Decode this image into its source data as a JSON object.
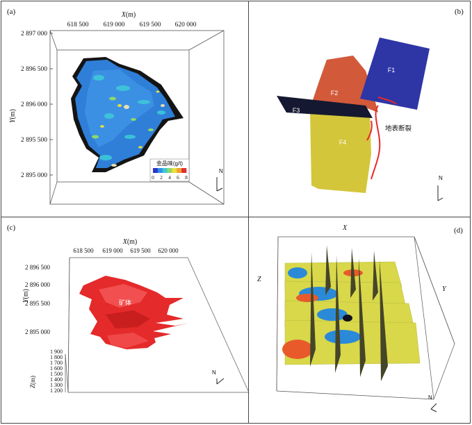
{
  "panel_a": {
    "label": "(a)",
    "x_axis_title": "X",
    "x_axis_unit": "(m)",
    "x_ticks": [
      "618 500",
      "619 000",
      "619 500",
      "620 000"
    ],
    "y_axis_title": "Y",
    "y_axis_unit": "(m)",
    "y_ticks": [
      "2 897 000",
      "2 896 500",
      "2 896 000",
      "2 895 500",
      "2 895 000"
    ],
    "legend_title": "金品味(g/t)",
    "legend_ticks": [
      "0",
      "2",
      "4",
      "6",
      "8"
    ],
    "legend_colors": [
      "#2a36c8",
      "#2f8fe8",
      "#3cc8d8",
      "#8ed86a",
      "#e8e040",
      "#f0a030",
      "#e03030"
    ],
    "north": "N"
  },
  "panel_b": {
    "label": "(b)",
    "f1": "F1",
    "f2": "F2",
    "f3": "F3",
    "f4": "F4",
    "surface_fault": "地表断裂",
    "north": "N",
    "colors": {
      "f1": "#2e36a6",
      "f2": "#d25a3a",
      "f3": "#141830",
      "f4": "#d4c63a",
      "trace": "#e82828"
    }
  },
  "panel_c": {
    "label": "(c)",
    "x_axis_title": "X",
    "x_axis_unit": "(m)",
    "x_ticks": [
      "618 500",
      "619 000",
      "619 500",
      "620 000"
    ],
    "y_axis_title": "Y",
    "y_axis_unit": "(m)",
    "y_ticks": [
      "2 896 500",
      "2 896 000",
      "2 895 500",
      "2 895 000"
    ],
    "z_axis_title": "Z",
    "z_axis_unit": "(m)",
    "z_ticks": [
      "1 900",
      "1 800",
      "1 700",
      "1 600",
      "1 500",
      "1 400",
      "1 300",
      "1 200"
    ],
    "orebody_label": "矿体",
    "north": "N",
    "orebody_color": "#e42a2a"
  },
  "panel_d": {
    "label": "(d)",
    "x_axis_title": "X",
    "y_axis_title": "Y",
    "z_axis_title": "Z",
    "north": "N",
    "section_colors": {
      "base": "#d8d84a",
      "high": "#e85a2a",
      "low": "#2a8ad8",
      "core": "#101020",
      "plane": "#454528"
    }
  }
}
